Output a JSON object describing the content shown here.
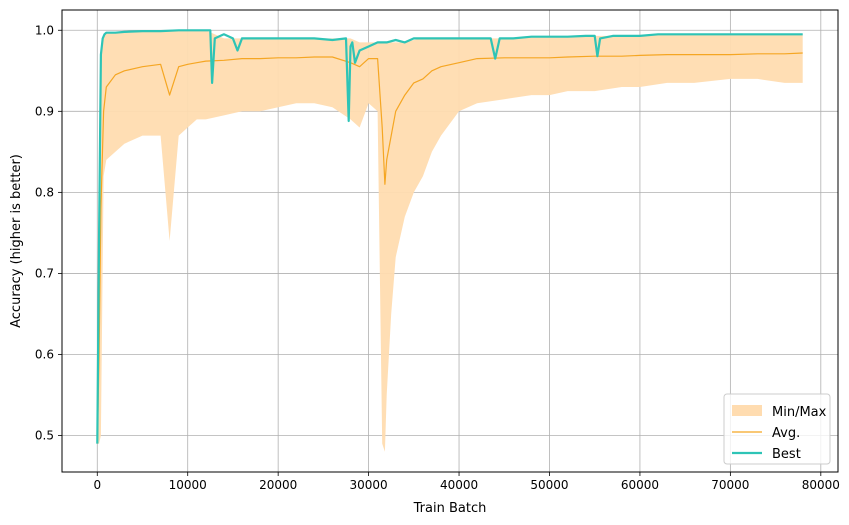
{
  "chart_data": {
    "type": "line",
    "title": "",
    "xlabel": "Train Batch",
    "ylabel": "Accuracy (higher is better)",
    "xlim": [
      -3900,
      81900
    ],
    "ylim": [
      0.455,
      1.025
    ],
    "xticks": [
      0,
      10000,
      20000,
      30000,
      40000,
      50000,
      60000,
      70000,
      80000
    ],
    "xtick_labels": [
      "0",
      "10000",
      "20000",
      "30000",
      "40000",
      "50000",
      "60000",
      "70000",
      "80000"
    ],
    "yticks": [
      0.5,
      0.6,
      0.7,
      0.8,
      0.9,
      1.0
    ],
    "ytick_labels": [
      "0.5",
      "0.6",
      "0.7",
      "0.8",
      "0.9",
      "1.0"
    ],
    "grid": true,
    "legend_position": "lower-right",
    "colors": {
      "minmax": "#ffdcb0",
      "avg": "#f5a623",
      "best": "#2ec4b6"
    },
    "legend": [
      "Min/Max",
      "Avg.",
      "Best"
    ],
    "series": [
      {
        "name": "Best",
        "x": [
          0,
          200,
          400,
          600,
          800,
          1000,
          2000,
          3000,
          5000,
          7000,
          9000,
          10000,
          11000,
          12000,
          12500,
          12700,
          13000,
          14000,
          15000,
          15500,
          16000,
          18000,
          20000,
          22000,
          24000,
          26000,
          27500,
          27800,
          28000,
          28200,
          28500,
          29000,
          30000,
          31000,
          32000,
          33000,
          34000,
          35000,
          36000,
          38000,
          40000,
          42000,
          43500,
          44000,
          44500,
          46000,
          48000,
          50000,
          52000,
          54000,
          55000,
          55300,
          55600,
          57000,
          60000,
          62000,
          65000,
          67000,
          70000,
          72000,
          75000,
          78000
        ],
        "values": [
          0.49,
          0.75,
          0.97,
          0.99,
          0.995,
          0.997,
          0.997,
          0.998,
          0.999,
          0.999,
          1.0,
          1.0,
          1.0,
          1.0,
          1.0,
          0.935,
          0.99,
          0.995,
          0.99,
          0.975,
          0.99,
          0.99,
          0.99,
          0.99,
          0.99,
          0.988,
          0.99,
          0.888,
          0.98,
          0.985,
          0.96,
          0.975,
          0.98,
          0.985,
          0.985,
          0.988,
          0.985,
          0.99,
          0.99,
          0.99,
          0.99,
          0.99,
          0.99,
          0.965,
          0.99,
          0.99,
          0.992,
          0.992,
          0.992,
          0.993,
          0.993,
          0.968,
          0.99,
          0.993,
          0.993,
          0.995,
          0.995,
          0.995,
          0.995,
          0.995,
          0.995,
          0.995
        ]
      },
      {
        "name": "Avg.",
        "x": [
          0,
          200,
          400,
          700,
          1000,
          2000,
          3000,
          5000,
          7000,
          8000,
          9000,
          10000,
          11000,
          12000,
          14000,
          16000,
          18000,
          20000,
          22000,
          24000,
          26000,
          28000,
          29000,
          30000,
          31000,
          31500,
          31800,
          32000,
          32500,
          33000,
          34000,
          35000,
          36000,
          37000,
          38000,
          40000,
          42000,
          45000,
          48000,
          50000,
          52000,
          55000,
          58000,
          60000,
          63000,
          66000,
          70000,
          73000,
          76000,
          78000
        ],
        "values": [
          0.49,
          0.6,
          0.78,
          0.9,
          0.93,
          0.945,
          0.95,
          0.955,
          0.958,
          0.92,
          0.955,
          0.958,
          0.96,
          0.962,
          0.963,
          0.965,
          0.965,
          0.966,
          0.966,
          0.967,
          0.967,
          0.96,
          0.955,
          0.965,
          0.965,
          0.88,
          0.81,
          0.84,
          0.87,
          0.9,
          0.92,
          0.935,
          0.94,
          0.95,
          0.955,
          0.96,
          0.965,
          0.966,
          0.966,
          0.966,
          0.967,
          0.968,
          0.968,
          0.969,
          0.97,
          0.97,
          0.97,
          0.971,
          0.971,
          0.972
        ]
      },
      {
        "name": "Min/Max",
        "x": [
          0,
          200,
          400,
          700,
          1000,
          2000,
          3000,
          5000,
          7000,
          8000,
          9000,
          10000,
          11000,
          12000,
          14000,
          16000,
          18000,
          20000,
          22000,
          24000,
          26000,
          28000,
          29000,
          30000,
          31000,
          31500,
          31800,
          32000,
          32500,
          33000,
          34000,
          35000,
          36000,
          37000,
          38000,
          40000,
          42000,
          45000,
          48000,
          50000,
          52000,
          55000,
          58000,
          60000,
          63000,
          66000,
          70000,
          73000,
          76000,
          78000
        ],
        "min": [
          0.49,
          0.49,
          0.5,
          0.82,
          0.84,
          0.85,
          0.86,
          0.87,
          0.87,
          0.74,
          0.87,
          0.88,
          0.89,
          0.89,
          0.895,
          0.9,
          0.9,
          0.905,
          0.91,
          0.91,
          0.905,
          0.89,
          0.88,
          0.91,
          0.9,
          0.49,
          0.48,
          0.55,
          0.65,
          0.72,
          0.77,
          0.8,
          0.82,
          0.85,
          0.87,
          0.9,
          0.91,
          0.915,
          0.92,
          0.92,
          0.925,
          0.925,
          0.93,
          0.93,
          0.935,
          0.935,
          0.94,
          0.94,
          0.935,
          0.935
        ],
        "max": [
          0.49,
          0.8,
          0.97,
          0.995,
          0.997,
          0.998,
          0.998,
          0.999,
          0.999,
          0.999,
          1.0,
          1.0,
          1.0,
          1.0,
          0.99,
          0.99,
          0.99,
          0.99,
          0.99,
          0.99,
          0.99,
          0.99,
          0.985,
          0.985,
          0.985,
          0.985,
          0.985,
          0.985,
          0.985,
          0.985,
          0.985,
          0.988,
          0.99,
          0.99,
          0.99,
          0.99,
          0.99,
          0.99,
          0.992,
          0.992,
          0.992,
          0.993,
          0.993,
          0.993,
          0.995,
          0.995,
          0.995,
          0.995,
          0.995,
          0.995
        ]
      }
    ]
  }
}
